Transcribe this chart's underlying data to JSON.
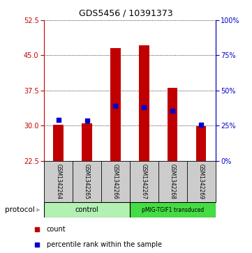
{
  "title": "GDS5456 / 10391373",
  "samples": [
    "GSM1342264",
    "GSM1342265",
    "GSM1342266",
    "GSM1342267",
    "GSM1342268",
    "GSM1342269"
  ],
  "bar_bottoms": [
    22.5,
    22.5,
    22.5,
    22.5,
    22.5,
    22.5
  ],
  "bar_tops": [
    30.2,
    30.5,
    46.5,
    47.2,
    38.0,
    29.8
  ],
  "blue_vals": [
    31.2,
    31.0,
    34.2,
    33.9,
    33.1,
    30.2
  ],
  "ylim_left": [
    22.5,
    52.5
  ],
  "ylim_right": [
    0,
    100
  ],
  "yticks_left": [
    22.5,
    30.0,
    37.5,
    45.0,
    52.5
  ],
  "yticks_right": [
    0,
    25,
    50,
    75,
    100
  ],
  "bar_color": "#c00000",
  "blue_color": "#0000cc",
  "bg_color": "#ffffff",
  "control_color": "#b3f0b3",
  "pmig_color": "#44dd44",
  "gray_color": "#cccccc",
  "protocol_label": "protocol",
  "control_label": "control",
  "pmig_label": "pMIG-TGIF1 transduced",
  "legend_count": "count",
  "legend_pct": "percentile rank within the sample"
}
